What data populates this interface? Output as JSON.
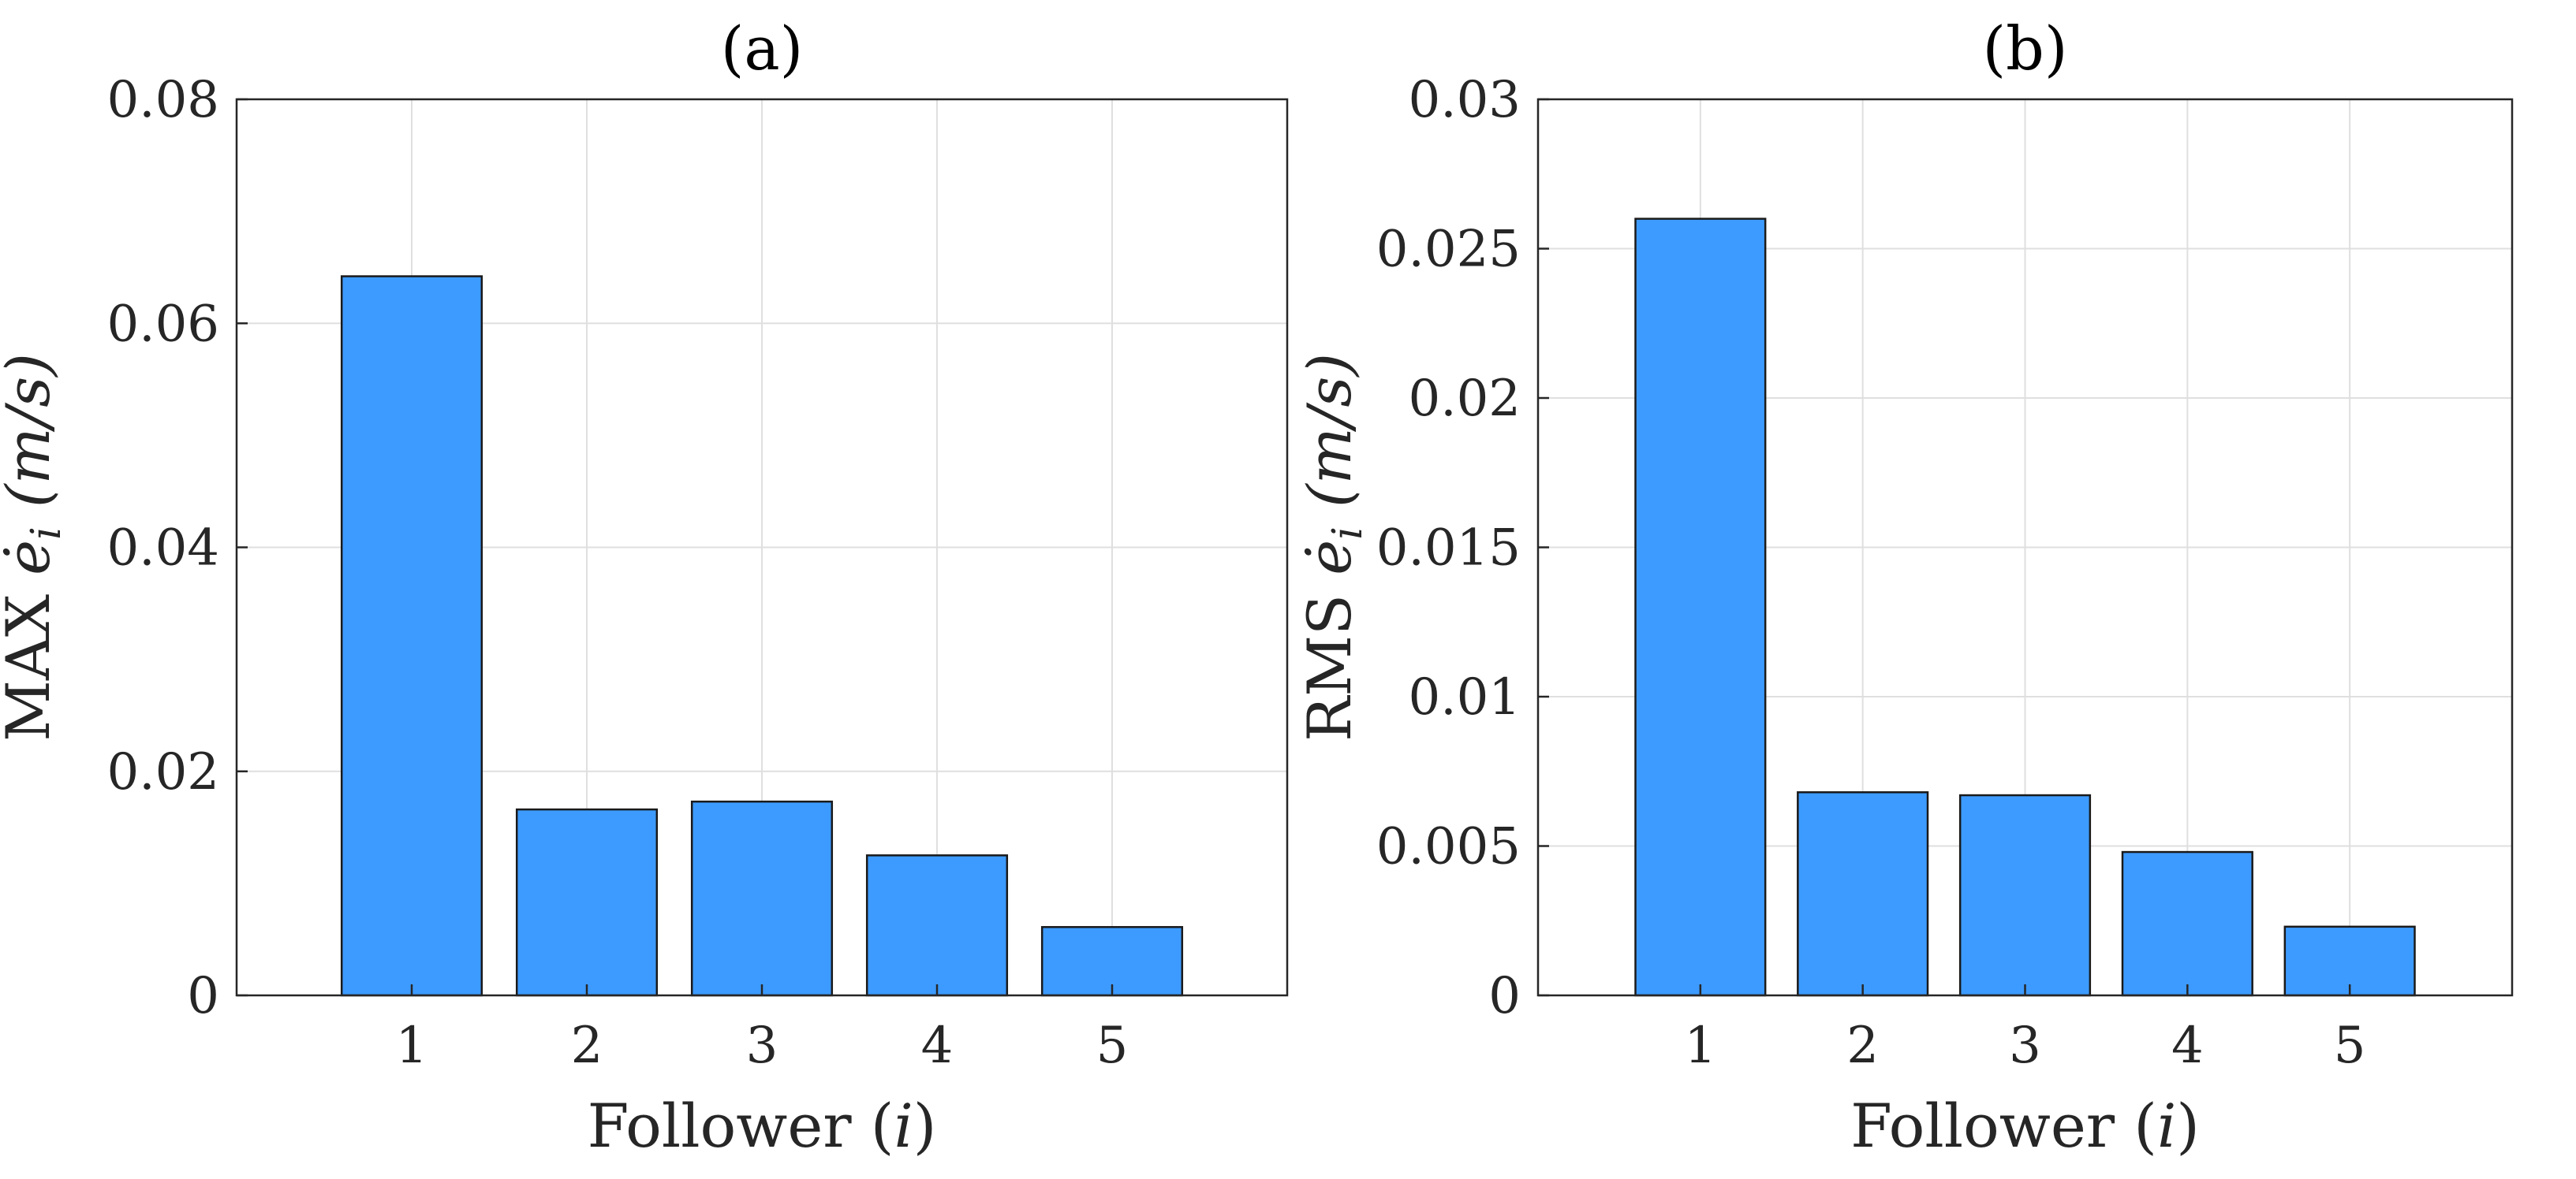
{
  "colors": {
    "bar": "#3d9bff",
    "grid": "#dfdfdf",
    "axis": "#262626"
  },
  "chart_data": [
    {
      "type": "bar",
      "title": "(a)",
      "categories": [
        "1",
        "2",
        "3",
        "4",
        "5"
      ],
      "values": [
        0.0642,
        0.0166,
        0.0173,
        0.0125,
        0.0061
      ],
      "xlabel_text": "Follower",
      "xlabel_var": "i",
      "ylabel_prefix": "MAX",
      "ylabel_var": "ė",
      "ylabel_sub": "i",
      "ylabel_unit": "(m/s)",
      "xlim": [
        0,
        6
      ],
      "ylim": [
        0,
        0.08
      ],
      "yticks": [
        0,
        0.02,
        0.04,
        0.06,
        0.08
      ],
      "ytick_labels": [
        "0",
        "0.02",
        "0.04",
        "0.06",
        "0.08"
      ],
      "grid": true
    },
    {
      "type": "bar",
      "title": "(b)",
      "categories": [
        "1",
        "2",
        "3",
        "4",
        "5"
      ],
      "values": [
        0.026,
        0.0068,
        0.0067,
        0.0048,
        0.0023
      ],
      "xlabel_text": "Follower",
      "xlabel_var": "i",
      "ylabel_prefix": "RMS",
      "ylabel_var": "ė",
      "ylabel_sub": "i",
      "ylabel_unit": "(m/s)",
      "xlim": [
        0,
        6
      ],
      "ylim": [
        0,
        0.03
      ],
      "yticks": [
        0,
        0.005,
        0.01,
        0.015,
        0.02,
        0.025,
        0.03
      ],
      "ytick_labels": [
        "0",
        "0.005",
        "0.01",
        "0.015",
        "0.02",
        "0.025",
        "0.03"
      ],
      "grid": true
    }
  ]
}
